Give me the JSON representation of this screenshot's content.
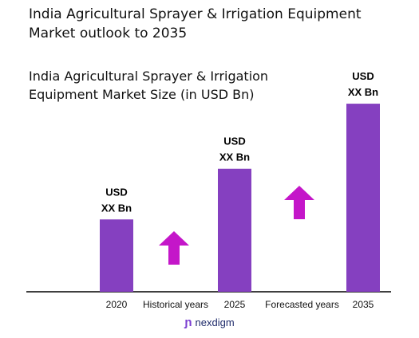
{
  "page": {
    "title": "India Agricultural Sprayer & Irrigation Equipment Market outlook to 2035",
    "brand": "nexdigm"
  },
  "colors": {
    "bar": "#8540c0",
    "arrow": "#c416c9",
    "axis": "#000000",
    "brand": "#1f2b6b"
  },
  "chart_data": {
    "type": "bar",
    "title": "India Agricultural Sprayer & Irrigation Equipment  Market Size (in USD Bn)",
    "categories": [
      "2020",
      "2025",
      "2035"
    ],
    "values": [
      1.0,
      1.7,
      2.6
    ],
    "value_labels": [
      "USD\nXX Bn",
      "USD\nXX Bn",
      "USD\nXX Bn"
    ],
    "period_labels": [
      "Historical years",
      "Forecasted years"
    ],
    "trend_arrows": [
      "up",
      "up"
    ],
    "ylim": [
      0,
      2.7
    ],
    "axes_visible": false,
    "grid": false
  }
}
